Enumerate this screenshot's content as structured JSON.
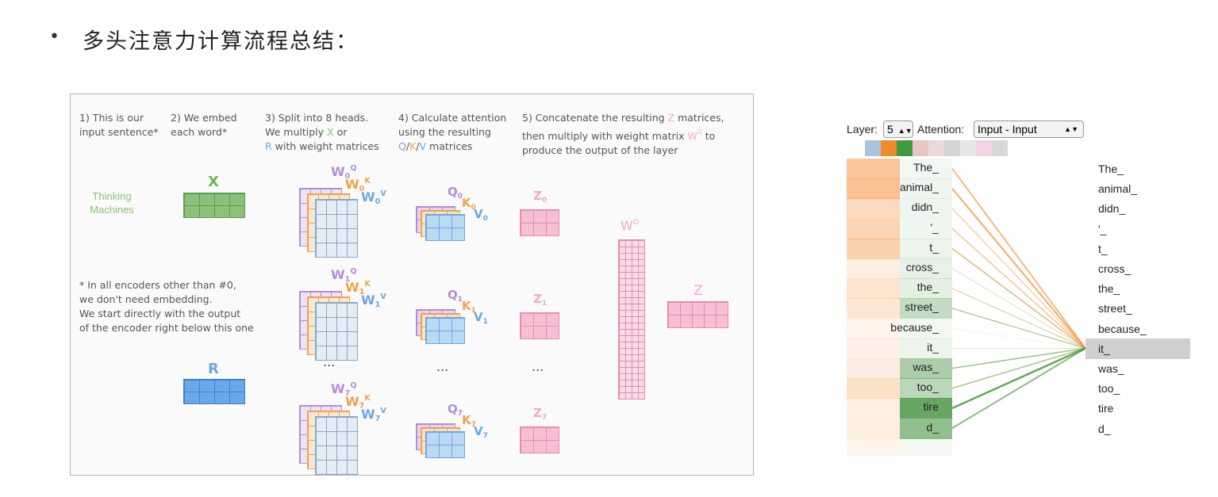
{
  "slide": {
    "bullet": "•",
    "heading": "多头注意力计算流程总结："
  },
  "diagram": {
    "steps": [
      "1) This is our\ninput sentence*",
      "2) We embed\neach word*",
      "3) Split into 8 heads.\nWe multiply X or\nR with weight matrices",
      "4) Calculate attention\nusing the resulting\nQ/K/V matrices",
      "5) Concatenate the resulting Z matrices,\nthen multiply with weight matrix WO to\nproduce the output of the layer"
    ],
    "input_sentence": "Thinking\nMachines",
    "x_label": "X",
    "r_label": "R",
    "footnote": "* In all encoders other than #0,\nwe don't need embedding.\nWe start directly with the output\nof the encoder right below this one",
    "ellipsis": "...",
    "wo_label": "WO",
    "z_label": "Z",
    "heads": [
      {
        "idx": "0",
        "wq": "W0Q",
        "wk": "W0K",
        "wv": "W0V",
        "q": "Q0",
        "k": "K0",
        "v": "V0",
        "z": "Z0"
      },
      {
        "idx": "1",
        "wq": "W1Q",
        "wk": "W1K",
        "wv": "W1V",
        "q": "Q1",
        "k": "K1",
        "v": "V1",
        "z": "Z1"
      },
      {
        "idx": "7",
        "wq": "W7Q",
        "wk": "W7K",
        "wv": "W7V",
        "q": "Q7",
        "k": "K7",
        "v": "V7",
        "z": "Z7"
      }
    ],
    "colors": {
      "x": "#8bc17b",
      "r": "#6aa8e8",
      "q": "#b38ed6",
      "k": "#f2a24a",
      "v": "#6aa8e8",
      "z": "#f3a8c6"
    }
  },
  "attention": {
    "layer_label": "Layer:",
    "layer_value": "5",
    "attention_label": "Attention:",
    "attention_value": "Input - Input",
    "head_colors": [
      "#aac4dc",
      "#f28a2c",
      "#3f9a3b",
      "#e8c4c4",
      "#ead8dc",
      "#d4d4d4",
      "#e6e6e6",
      "#f2d4e6",
      "#d8d8d8"
    ],
    "tokens": [
      "The_",
      "animal_",
      "didn_",
      "'_",
      "t_",
      "cross_",
      "the_",
      "street_",
      "because_",
      "it_",
      "was_",
      "too_",
      "tire",
      "d_"
    ],
    "selected_token": "it_",
    "orange_weights": [
      0.75,
      0.85,
      0.45,
      0.55,
      0.6,
      0.12,
      0.3,
      0.25,
      0.05,
      0.08,
      0.15,
      0.35,
      0.1,
      0.12
    ],
    "green_weights": [
      0.02,
      0.03,
      0.04,
      0.03,
      0.05,
      0.08,
      0.1,
      0.3,
      0.02,
      0.05,
      0.45,
      0.35,
      0.85,
      0.6
    ]
  }
}
